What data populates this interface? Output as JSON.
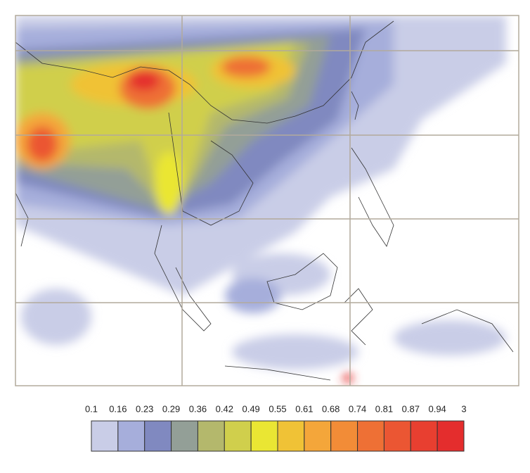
{
  "colorbar": {
    "ticks": [
      0.1,
      0.16,
      0.23,
      0.29,
      0.36,
      0.42,
      0.49,
      0.55,
      0.61,
      0.68,
      0.74,
      0.81,
      0.87,
      0.94,
      3
    ],
    "colors": [
      "#c9cde7",
      "#a6aedb",
      "#8089c0",
      "#939f97",
      "#b4b86c",
      "#d0cf4c",
      "#eae633",
      "#f0c236",
      "#f4a63a",
      "#f28c37",
      "#ee7035",
      "#eb5633",
      "#e83f30",
      "#e42d2d"
    ]
  }
}
